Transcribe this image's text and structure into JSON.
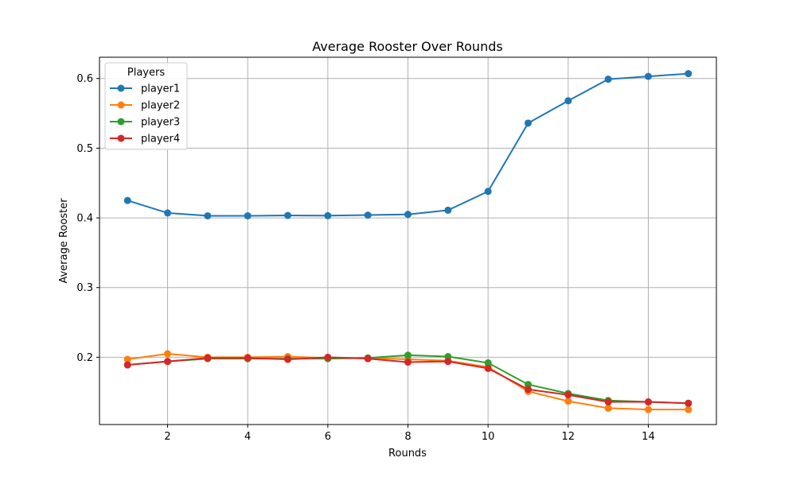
{
  "chart_data": {
    "type": "line",
    "title": "Average Rooster Over Rounds",
    "xlabel": "Rounds",
    "ylabel": "Average Rooster",
    "xlim": [
      0.3,
      15.7
    ],
    "ylim": [
      0.1035,
      0.6305
    ],
    "xticks": [
      2,
      4,
      6,
      8,
      10,
      12,
      14
    ],
    "yticks": [
      0.2,
      0.3,
      0.4,
      0.5,
      0.6
    ],
    "xtick_labels": [
      "2",
      "4",
      "6",
      "8",
      "10",
      "12",
      "14"
    ],
    "ytick_labels": [
      "0.2",
      "0.3",
      "0.4",
      "0.5",
      "0.6"
    ],
    "grid": true,
    "legend": {
      "title": "Players",
      "position": "top-left"
    },
    "x": [
      1,
      2,
      3,
      4,
      5,
      6,
      7,
      8,
      9,
      10,
      11,
      12,
      13,
      14,
      15
    ],
    "series": [
      {
        "name": "player1",
        "color": "#1f77b4",
        "values": [
          0.425,
          0.407,
          0.403,
          0.403,
          0.4035,
          0.4032,
          0.404,
          0.405,
          0.411,
          0.438,
          0.536,
          0.568,
          0.599,
          0.603,
          0.607
        ]
      },
      {
        "name": "player2",
        "color": "#ff7f0e",
        "values": [
          0.197,
          0.205,
          0.2,
          0.2,
          0.201,
          0.199,
          0.199,
          0.197,
          0.195,
          0.186,
          0.151,
          0.137,
          0.127,
          0.125,
          0.125
        ]
      },
      {
        "name": "player3",
        "color": "#2ca02c",
        "values": [
          0.189,
          0.194,
          0.198,
          0.198,
          0.198,
          0.198,
          0.199,
          0.203,
          0.201,
          0.192,
          0.161,
          0.148,
          0.138,
          0.136,
          0.134
        ]
      },
      {
        "name": "player4",
        "color": "#d62728",
        "values": [
          0.189,
          0.194,
          0.199,
          0.199,
          0.197,
          0.2,
          0.198,
          0.193,
          0.194,
          0.184,
          0.154,
          0.146,
          0.136,
          0.136,
          0.134
        ]
      }
    ]
  }
}
